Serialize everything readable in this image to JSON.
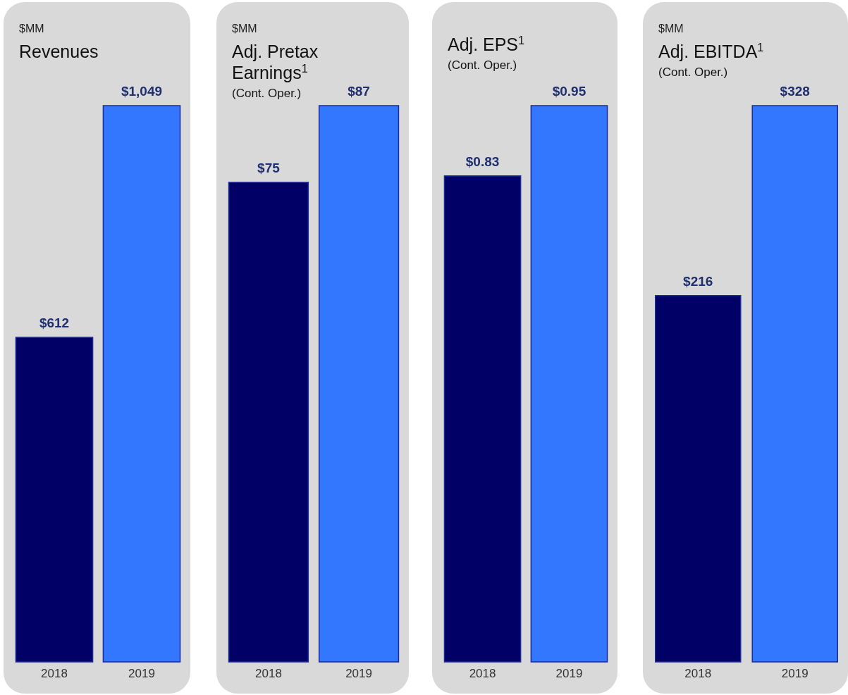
{
  "chart_data": [
    {
      "type": "bar",
      "ylabel": "$MM",
      "title": "Revenues",
      "categories": [
        "2018",
        "2019"
      ],
      "values": [
        612,
        1049
      ],
      "colors": [
        "#000066",
        "#3377ff"
      ],
      "value_labels": [
        "$612",
        "$1,049"
      ]
    },
    {
      "type": "bar",
      "ylabel": "$MM",
      "title": "Adj. Pretax Earnings$^{1}$",
      "subtitle": "(Cont. Oper.)",
      "categories": [
        "2018",
        "2019"
      ],
      "values": [
        75,
        87
      ],
      "colors": [
        "#000066",
        "#3377ff"
      ],
      "value_labels": [
        "$75",
        "$87"
      ]
    },
    {
      "type": "bar",
      "title": "Adj. EPS$^{1}$",
      "subtitle": "(Cont. Oper.)",
      "categories": [
        "2018",
        "2019"
      ],
      "values": [
        0.83,
        0.95
      ],
      "colors": [
        "#000066",
        "#3377ff"
      ],
      "value_labels": [
        "$0.83",
        "$0.95"
      ]
    },
    {
      "type": "bar",
      "ylabel": "$MM",
      "title": "Adj. EBITDA$^{1}$",
      "subtitle": "(Cont. Oper.)",
      "categories": [
        "2018",
        "2019"
      ],
      "values": [
        216,
        328
      ],
      "colors": [
        "#000066",
        "#3377ff"
      ],
      "value_labels": [
        "$216",
        "$328"
      ]
    }
  ]
}
